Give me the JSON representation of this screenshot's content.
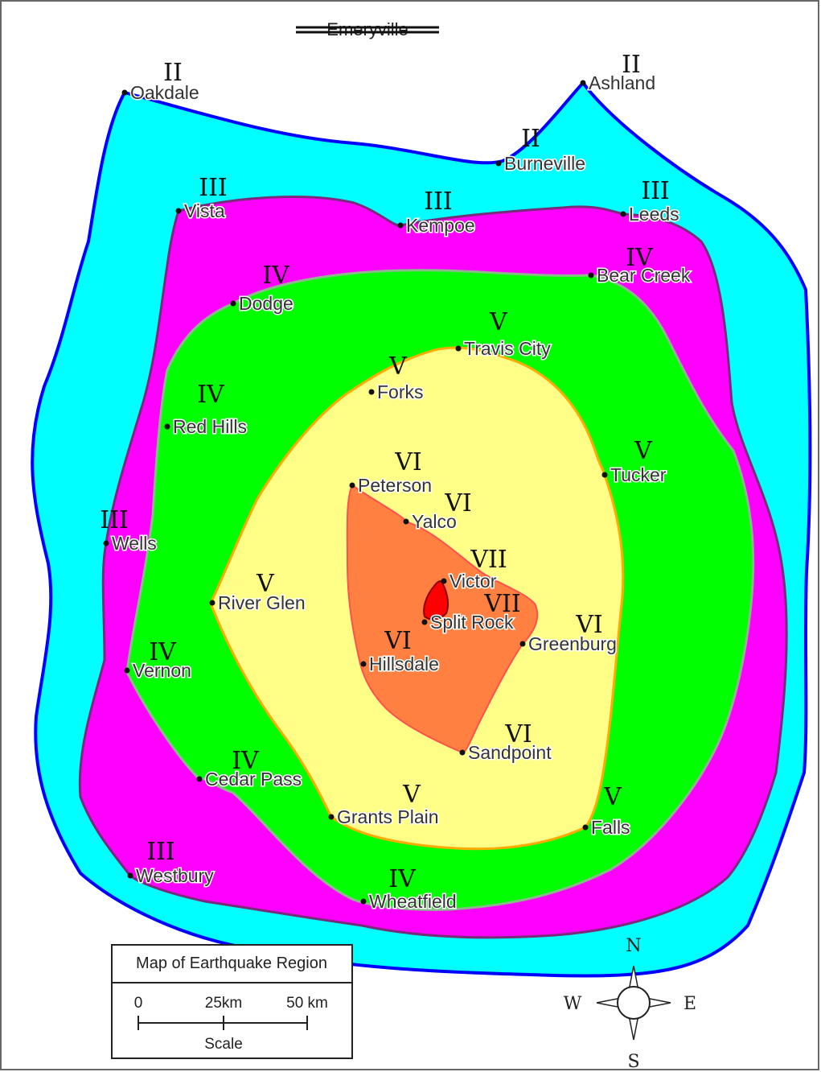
{
  "header": {
    "struck_title": "Emeryville"
  },
  "zone_colors": {
    "II": "#00ffff",
    "III": "#ff00ff",
    "IV": "#00ff00",
    "V": "#ffff88",
    "VI": "#ff8040",
    "VII": "#ff0000"
  },
  "towns": [
    {
      "name": "Oakdale",
      "intensity": "II"
    },
    {
      "name": "Ashland",
      "intensity": "II"
    },
    {
      "name": "Burneville",
      "intensity": "II"
    },
    {
      "name": "Vista",
      "intensity": "III"
    },
    {
      "name": "Kempoe",
      "intensity": "III"
    },
    {
      "name": "Leeds",
      "intensity": "III"
    },
    {
      "name": "Bear Creek",
      "intensity": "IV"
    },
    {
      "name": "Dodge",
      "intensity": "IV"
    },
    {
      "name": "Travis City",
      "intensity": "V"
    },
    {
      "name": "Forks",
      "intensity": "V"
    },
    {
      "name": "Red Hills",
      "intensity": "IV"
    },
    {
      "name": "Tucker",
      "intensity": "V"
    },
    {
      "name": "Peterson",
      "intensity": "VI"
    },
    {
      "name": "Yalco",
      "intensity": "VI"
    },
    {
      "name": "Wells",
      "intensity": "III"
    },
    {
      "name": "Victor",
      "intensity": "VII"
    },
    {
      "name": "River Glen",
      "intensity": "V"
    },
    {
      "name": "Split Rock",
      "intensity": "VII"
    },
    {
      "name": "Greenburg",
      "intensity": "VI"
    },
    {
      "name": "Hillsdale",
      "intensity": "VI"
    },
    {
      "name": "Vernon",
      "intensity": "IV"
    },
    {
      "name": "Sandpoint",
      "intensity": "VI"
    },
    {
      "name": "Cedar Pass",
      "intensity": "IV"
    },
    {
      "name": "Grants Plain",
      "intensity": "V"
    },
    {
      "name": "Falls",
      "intensity": "V"
    },
    {
      "name": "Westbury",
      "intensity": "III"
    },
    {
      "name": "Wheatfield",
      "intensity": "IV"
    }
  ],
  "legend": {
    "title": "Map of Earthquake Region",
    "scale_ticks": [
      "0",
      "25km",
      "50 km"
    ],
    "scale_label": "Scale"
  },
  "compass": {
    "n": "N",
    "e": "E",
    "s": "S",
    "w": "W"
  }
}
